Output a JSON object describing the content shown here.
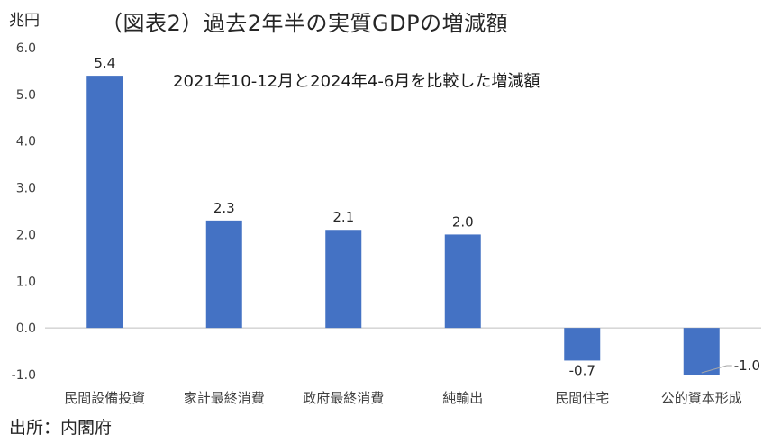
{
  "header": {
    "unit": "兆円",
    "title": "（図表2）過去2年半の実質GDPの増減額"
  },
  "footer": {
    "source": "出所：内閣府"
  },
  "chart_data": {
    "type": "bar",
    "title": "（図表2）過去2年半の実質GDPの増減額",
    "subtitle": "2021年10-12月と2024年4-6月を比較した増減額",
    "ylabel": "兆円",
    "xlabel": "",
    "categories": [
      "民間設備投資",
      "家計最終消費",
      "政府最終消費",
      "純輸出",
      "民間住宅",
      "公的資本形成"
    ],
    "values": [
      5.4,
      2.3,
      2.1,
      2.0,
      -0.7,
      -1.0
    ],
    "value_labels": [
      "5.4",
      "2.3",
      "2.1",
      "2.0",
      "-0.7",
      "-1.0"
    ],
    "ylim": [
      -1.0,
      6.0
    ],
    "yticks": [
      "-1.0",
      "0.0",
      "1.0",
      "2.0",
      "3.0",
      "4.0",
      "5.0",
      "6.0"
    ],
    "bar_color": "#4472c4",
    "grid": false,
    "legend": "none"
  }
}
